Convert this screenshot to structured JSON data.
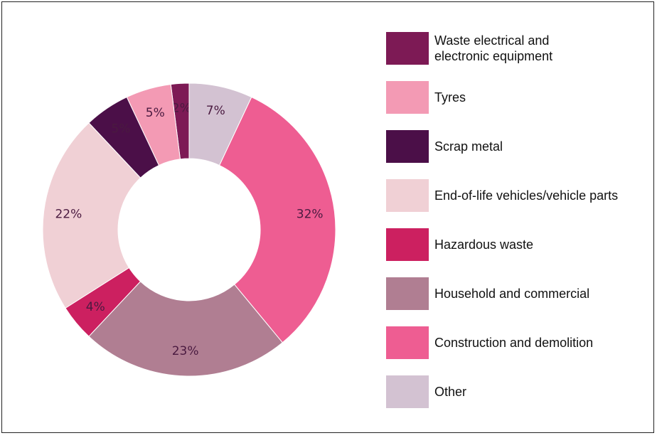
{
  "chart_data": {
    "type": "pie",
    "donut": true,
    "title": "",
    "start_angle_deg": 0,
    "direction": "counterclockwise-from-top-legend-order",
    "slices": [
      {
        "label": "Waste electrical and\nelectronic equipment",
        "value": 2,
        "value_label": "2%",
        "color": "#7d1a55"
      },
      {
        "label": "Tyres",
        "value": 5,
        "value_label": "5%",
        "color": "#f39ab4"
      },
      {
        "label": "Scrap metal",
        "value": 5,
        "value_label": "5%",
        "color": "#4b0f48"
      },
      {
        "label": "End-of-life vehicles/vehicle parts",
        "value": 22,
        "value_label": "22%",
        "color": "#f0d0d5"
      },
      {
        "label": "Hazardous waste",
        "value": 4,
        "value_label": "4%",
        "color": "#cc2060"
      },
      {
        "label": "Household and commercial",
        "value": 23,
        "value_label": "23%",
        "color": "#b07e92"
      },
      {
        "label": "Construction and demolition",
        "value": 32,
        "value_label": "32%",
        "color": "#ee5d92"
      },
      {
        "label": "Other",
        "value": 7,
        "value_label": "7%",
        "color": "#d3c2d2"
      }
    ],
    "legend_position": "right"
  }
}
